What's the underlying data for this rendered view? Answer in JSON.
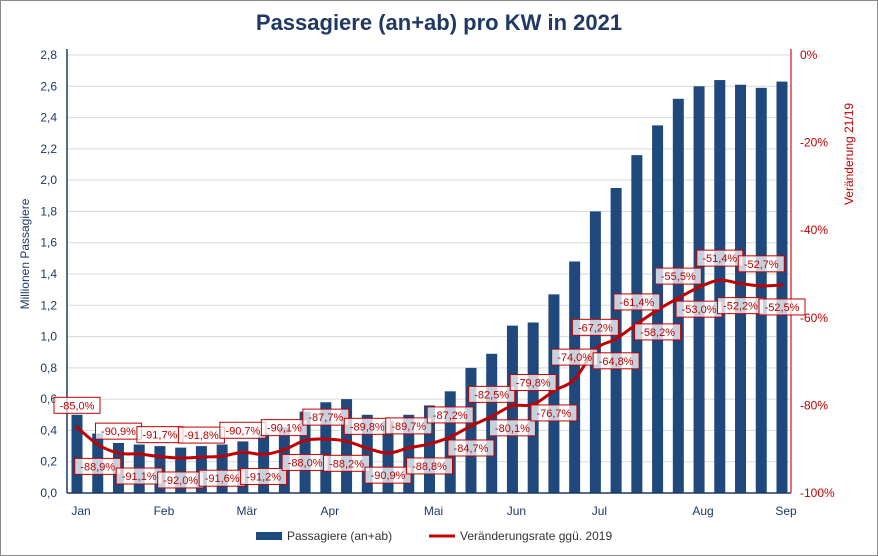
{
  "chart_data": {
    "type": "bar+line",
    "title": "Passagiere (an+ab) pro KW in 2021",
    "ylabel": "Millionen Passagiere",
    "y2label": "Veränderung 21/19",
    "ylim": [
      0,
      2.8
    ],
    "y2lim": [
      -100,
      0
    ],
    "yticks": [
      "0,0",
      "0,2",
      "0,4",
      "0,6",
      "0,8",
      "1,0",
      "1,2",
      "1,4",
      "1,6",
      "1,8",
      "2,0",
      "2,2",
      "2,4",
      "2,6",
      "2,8"
    ],
    "y2ticks": [
      "-100%",
      "-80%",
      "-60%",
      "-40%",
      "-20%",
      "0%"
    ],
    "month_labels": [
      {
        "label": "Jan",
        "week": 1
      },
      {
        "label": "Feb",
        "week": 5
      },
      {
        "label": "Mär",
        "week": 9
      },
      {
        "label": "Apr",
        "week": 13
      },
      {
        "label": "Mai",
        "week": 18
      },
      {
        "label": "Jun",
        "week": 22
      },
      {
        "label": "Jul",
        "week": 26
      },
      {
        "label": "Aug",
        "week": 31
      },
      {
        "label": "Sep",
        "week": 35
      }
    ],
    "grid": true,
    "legend_position": "bottom",
    "colors": {
      "bars": "#1f497d",
      "line": "#c00000",
      "title": "#1f3864"
    },
    "series": [
      {
        "name": "Passagiere (an+ab)",
        "type": "bar",
        "values": [
          0.5,
          0.38,
          0.32,
          0.31,
          0.3,
          0.29,
          0.3,
          0.31,
          0.33,
          0.38,
          0.42,
          0.52,
          0.58,
          0.6,
          0.5,
          0.46,
          0.5,
          0.56,
          0.65,
          0.8,
          0.89,
          1.07,
          1.09,
          1.27,
          1.48,
          1.8,
          1.95,
          2.16,
          2.35,
          2.52,
          2.6,
          2.64,
          2.61,
          2.59,
          2.63
        ]
      },
      {
        "name": "Veränderungsrate ggü. 2019",
        "type": "line",
        "values": [
          -85.0,
          -88.9,
          -90.9,
          -91.1,
          -91.7,
          -92.0,
          -91.8,
          -91.6,
          -90.7,
          -91.2,
          -90.1,
          -88.0,
          -87.7,
          -88.2,
          -89.8,
          -90.9,
          -89.7,
          -88.8,
          -87.2,
          -84.7,
          -82.5,
          -80.1,
          -79.8,
          -76.7,
          -74.0,
          -67.2,
          -64.8,
          -61.4,
          -58.2,
          -55.5,
          -53.0,
          -51.4,
          -52.2,
          -52.7,
          -52.5
        ],
        "labels": [
          "-85,0%",
          "-88,9%",
          "-90,9%",
          "-91,1%",
          "-91,7%",
          "-92,0%",
          "-91,8%",
          "-91,6%",
          "-90,7%",
          "-91,2%",
          "-90,1%",
          "-88,0%",
          "-87,7%",
          "-88,2%",
          "-89,8%",
          "-90,9%",
          "-89,7%",
          "-88,8%",
          "-87,2%",
          "-84,7%",
          "-82,5%",
          "-80,1%",
          "-79,8%",
          "-76,7%",
          "-74,0%",
          "-67,2%",
          "-64,8%",
          "-61,4%",
          "-58,2%",
          "-55,5%",
          "-53,0%",
          "-51,4%",
          "-52,2%",
          "-52,7%",
          "-52,5%"
        ]
      }
    ]
  }
}
